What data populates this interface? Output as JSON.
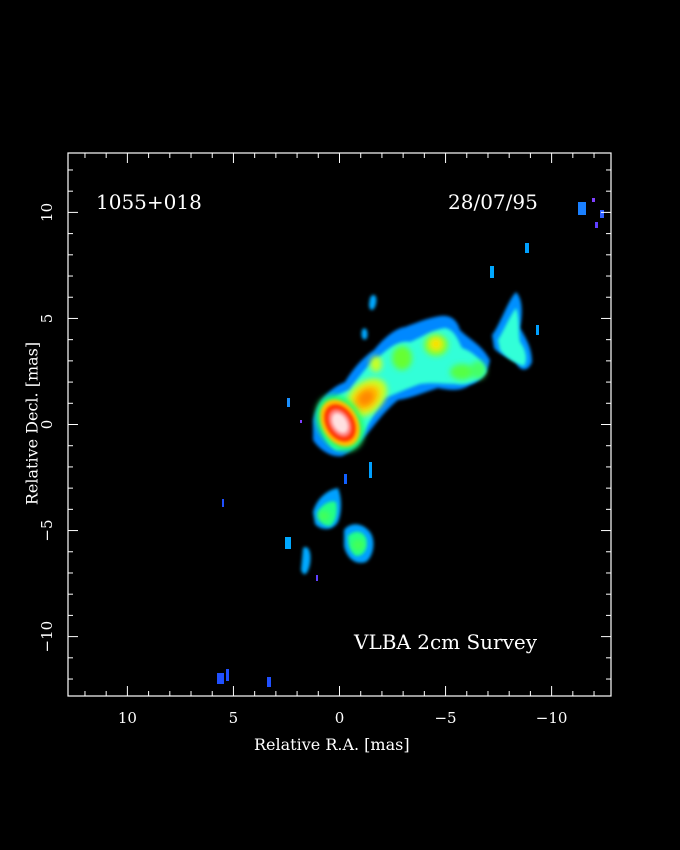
{
  "image": {
    "source_name": "1055+018",
    "date": "28/07/95",
    "survey": "VLBA 2cm Survey",
    "xlabel": "Relative R.A. [mas]",
    "ylabel": "Relative Decl. [mas]",
    "x_ticks": [
      "10",
      "5",
      "0",
      "−5",
      "−10"
    ],
    "y_ticks": [
      "10",
      "5",
      "0",
      "−5",
      "−10"
    ],
    "x_range_mas": [
      12.8,
      -12.8
    ],
    "y_range_mas": [
      -12.8,
      12.8
    ],
    "background_color": "#000000",
    "colormap": [
      "#3a2cff",
      "#00a8ff",
      "#33ffdd",
      "#22ff66",
      "#c8ff20",
      "#ffc000",
      "#ff3000",
      "#ffd8d8"
    ],
    "components": [
      {
        "name": "core",
        "ra": 0.0,
        "dec": 0.0,
        "level": 1.0
      },
      {
        "name": "inner-jet",
        "ra": -1.3,
        "dec": 1.2,
        "level": 0.72
      },
      {
        "name": "jet-knot-1",
        "ra": -2.9,
        "dec": 2.9,
        "level": 0.5
      },
      {
        "name": "jet-knot-2",
        "ra": -4.5,
        "dec": 3.5,
        "level": 0.48
      },
      {
        "name": "jet-knot-3",
        "ra": -5.8,
        "dec": 3.0,
        "level": 0.35
      },
      {
        "name": "outer-knot-1",
        "ra": -7.8,
        "dec": 4.0,
        "level": 0.3
      },
      {
        "name": "outer-knot-2",
        "ra": -8.5,
        "dec": 5.5,
        "level": 0.28
      },
      {
        "name": "counterjet-knot-1",
        "ra": 0.5,
        "dec": -4.4,
        "level": 0.28
      },
      {
        "name": "counterjet-knot-2",
        "ra": -1.0,
        "dec": -5.6,
        "level": 0.28
      }
    ]
  }
}
